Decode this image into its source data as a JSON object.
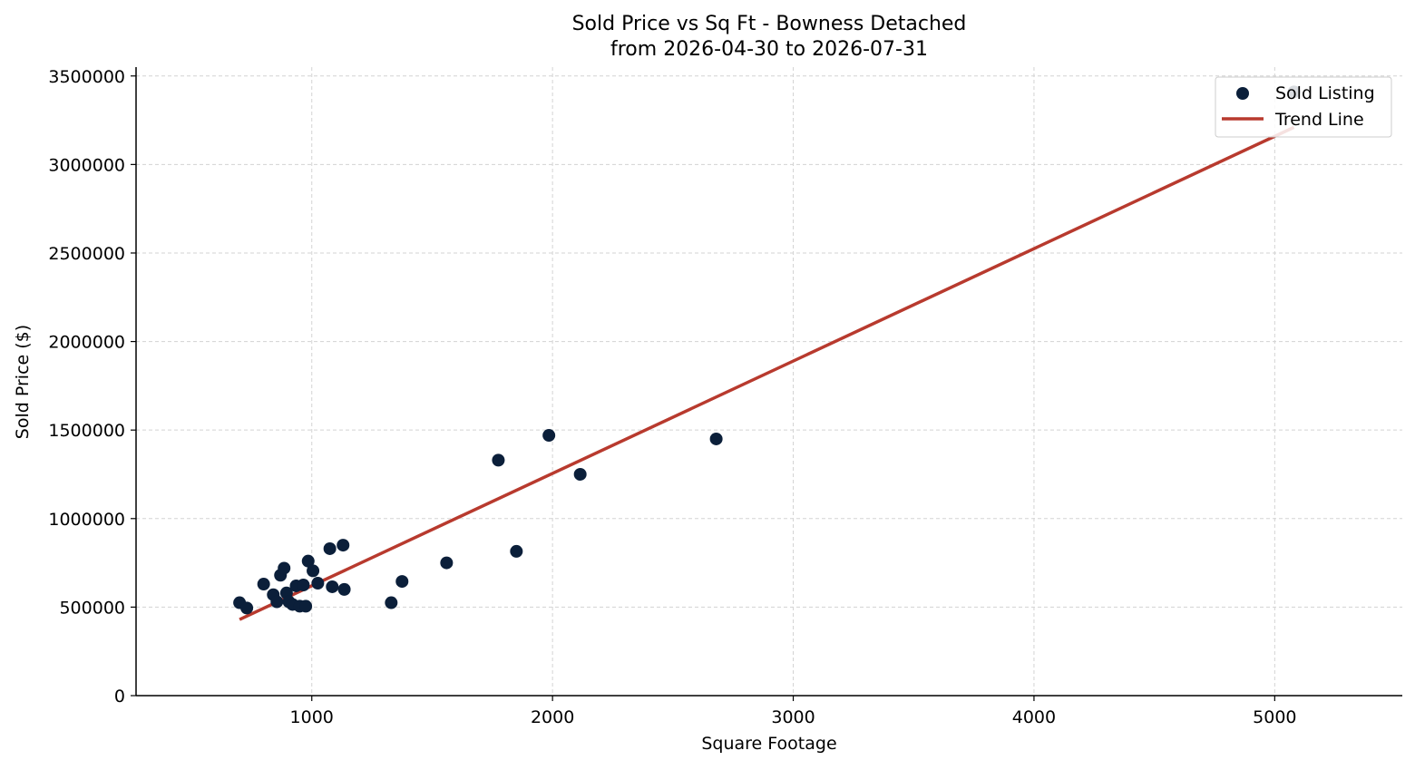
{
  "chart_data": {
    "type": "scatter",
    "title": "Sold Price vs Sq Ft - Bowness Detached",
    "subtitle": "from 2026-04-30 to 2026-07-31",
    "xlabel": "Square Footage",
    "ylabel": "Sold Price ($)",
    "xlim": [
      270,
      5530
    ],
    "ylim": [
      0,
      3550000
    ],
    "x_ticks": [
      1000,
      2000,
      3000,
      4000,
      5000
    ],
    "x_tick_labels": [
      "1000",
      "2000",
      "3000",
      "4000",
      "5000"
    ],
    "y_ticks": [
      0,
      500000,
      1000000,
      1500000,
      2000000,
      2500000,
      3000000,
      3500000
    ],
    "y_tick_labels": [
      "0",
      "500000",
      "1000000",
      "1500000",
      "2000000",
      "2500000",
      "3000000",
      "3500000"
    ],
    "grid": true,
    "legend_position": "top-right",
    "colors": {
      "points": "#0b1f3a",
      "trend": "#b83a2e"
    },
    "series": [
      {
        "name": "Sold Listing",
        "type": "scatter",
        "points": [
          {
            "x": 700,
            "y": 525000
          },
          {
            "x": 730,
            "y": 495000
          },
          {
            "x": 800,
            "y": 630000
          },
          {
            "x": 840,
            "y": 570000
          },
          {
            "x": 855,
            "y": 530000
          },
          {
            "x": 870,
            "y": 680000
          },
          {
            "x": 885,
            "y": 720000
          },
          {
            "x": 895,
            "y": 580000
          },
          {
            "x": 905,
            "y": 530000
          },
          {
            "x": 920,
            "y": 515000
          },
          {
            "x": 935,
            "y": 620000
          },
          {
            "x": 950,
            "y": 505000
          },
          {
            "x": 965,
            "y": 625000
          },
          {
            "x": 975,
            "y": 505000
          },
          {
            "x": 985,
            "y": 760000
          },
          {
            "x": 1005,
            "y": 705000
          },
          {
            "x": 1025,
            "y": 635000
          },
          {
            "x": 1075,
            "y": 830000
          },
          {
            "x": 1085,
            "y": 615000
          },
          {
            "x": 1130,
            "y": 850000
          },
          {
            "x": 1135,
            "y": 600000
          },
          {
            "x": 1330,
            "y": 525000
          },
          {
            "x": 1375,
            "y": 645000
          },
          {
            "x": 1560,
            "y": 750000
          },
          {
            "x": 1775,
            "y": 1330000
          },
          {
            "x": 1850,
            "y": 815000
          },
          {
            "x": 1985,
            "y": 1470000
          },
          {
            "x": 2115,
            "y": 1250000
          },
          {
            "x": 2680,
            "y": 1450000
          },
          {
            "x": 5080,
            "y": 3410000
          }
        ]
      },
      {
        "name": "Trend Line",
        "type": "line",
        "points": [
          {
            "x": 700,
            "y": 430000
          },
          {
            "x": 5080,
            "y": 3210000
          }
        ]
      }
    ]
  }
}
